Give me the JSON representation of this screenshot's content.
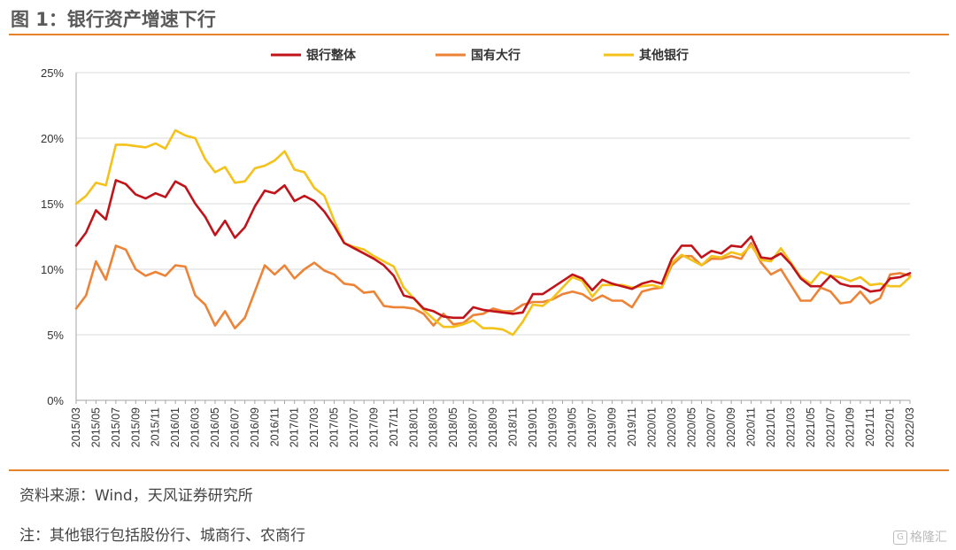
{
  "header": {
    "title": "图 1：银行资产增速下行"
  },
  "footer": {
    "source": "资料来源：Wind，天风证券研究所",
    "note": "注：其他银行包括股份行、城商行、农商行"
  },
  "watermark": {
    "text": "格隆汇",
    "icon": "glh-logo-icon"
  },
  "chart_data": {
    "type": "line",
    "ylim": [
      0,
      25
    ],
    "ytick_labels": [
      "0%",
      "5%",
      "10%",
      "15%",
      "20%",
      "25%"
    ],
    "ytick_values": [
      0,
      5,
      10,
      15,
      20,
      25
    ],
    "grid": "horizontal",
    "legend_position": "top",
    "x": [
      "2015/03",
      "2015/04",
      "2015/05",
      "2015/06",
      "2015/07",
      "2015/08",
      "2015/09",
      "2015/10",
      "2015/11",
      "2015/12",
      "2016/01",
      "2016/02",
      "2016/03",
      "2016/04",
      "2016/05",
      "2016/06",
      "2016/07",
      "2016/08",
      "2016/09",
      "2016/10",
      "2016/11",
      "2016/12",
      "2017/01",
      "2017/02",
      "2017/03",
      "2017/04",
      "2017/05",
      "2017/06",
      "2017/07",
      "2017/08",
      "2017/09",
      "2017/10",
      "2017/11",
      "2017/12",
      "2018/01",
      "2018/02",
      "2018/03",
      "2018/04",
      "2018/05",
      "2018/06",
      "2018/07",
      "2018/08",
      "2018/09",
      "2018/10",
      "2018/11",
      "2018/12",
      "2019/01",
      "2019/02",
      "2019/03",
      "2019/04",
      "2019/05",
      "2019/06",
      "2019/07",
      "2019/08",
      "2019/09",
      "2019/10",
      "2019/11",
      "2019/12",
      "2020/01",
      "2020/02",
      "2020/03",
      "2020/04",
      "2020/05",
      "2020/06",
      "2020/07",
      "2020/08",
      "2020/09",
      "2020/10",
      "2020/11",
      "2020/12",
      "2021/01",
      "2021/02",
      "2021/03",
      "2021/04",
      "2021/05",
      "2021/06",
      "2021/07",
      "2021/08",
      "2021/09",
      "2021/10",
      "2021/11",
      "2021/12",
      "2022/01",
      "2022/02",
      "2022/03"
    ],
    "xtick_labels": [
      "2015/03",
      "2015/05",
      "2015/07",
      "2015/09",
      "2015/11",
      "2016/01",
      "2016/03",
      "2016/05",
      "2016/07",
      "2016/09",
      "2016/11",
      "2017/01",
      "2017/03",
      "2017/05",
      "2017/07",
      "2017/09",
      "2017/11",
      "2018/01",
      "2018/03",
      "2018/05",
      "2018/07",
      "2018/09",
      "2018/11",
      "2019/01",
      "2019/03",
      "2019/05",
      "2019/07",
      "2019/09",
      "2019/11",
      "2020/01",
      "2020/03",
      "2020/05",
      "2020/07",
      "2020/09",
      "2020/11",
      "2021/01",
      "2021/03",
      "2021/05",
      "2021/07",
      "2021/09",
      "2021/11",
      "2022/01",
      "2022/03"
    ],
    "series": [
      {
        "name": "银行整体",
        "color": "#c0141a",
        "values": [
          11.8,
          12.8,
          14.5,
          13.8,
          16.8,
          16.5,
          15.7,
          15.4,
          15.8,
          15.5,
          16.7,
          16.3,
          15.0,
          14.0,
          12.6,
          13.7,
          12.4,
          13.2,
          14.8,
          16.0,
          15.8,
          16.4,
          15.2,
          15.6,
          15.2,
          14.4,
          13.3,
          12.0,
          11.6,
          11.2,
          10.8,
          10.3,
          9.5,
          8.0,
          7.8,
          7.0,
          6.8,
          6.4,
          6.3,
          6.3,
          7.1,
          6.9,
          6.8,
          6.7,
          6.6,
          6.7,
          8.1,
          8.1,
          8.6,
          9.1,
          9.6,
          9.3,
          8.4,
          9.2,
          8.9,
          8.7,
          8.5,
          8.9,
          9.1,
          8.9,
          10.8,
          11.8,
          11.8,
          10.9,
          11.4,
          11.2,
          11.8,
          11.7,
          12.5,
          10.9,
          10.8,
          11.2,
          10.4,
          9.3,
          8.7,
          8.7,
          9.5,
          8.9,
          8.7,
          8.7,
          8.3,
          8.4,
          9.3,
          9.4,
          9.7
        ]
      },
      {
        "name": "国有大行",
        "color": "#ed8336",
        "values": [
          7.0,
          8.0,
          10.6,
          9.2,
          11.8,
          11.5,
          10.0,
          9.5,
          9.8,
          9.5,
          10.3,
          10.2,
          8.0,
          7.3,
          5.7,
          6.8,
          5.5,
          6.3,
          8.3,
          10.3,
          9.6,
          10.3,
          9.3,
          10.0,
          10.5,
          9.9,
          9.6,
          8.9,
          8.8,
          8.2,
          8.3,
          7.2,
          7.1,
          7.1,
          7.0,
          6.6,
          5.7,
          6.6,
          5.8,
          5.9,
          6.5,
          6.6,
          7.0,
          6.8,
          6.8,
          7.3,
          7.5,
          7.5,
          7.7,
          8.1,
          8.3,
          8.1,
          7.6,
          8.0,
          7.6,
          7.6,
          7.1,
          8.3,
          8.5,
          8.6,
          10.3,
          11.0,
          11.0,
          10.3,
          10.8,
          10.8,
          11.0,
          10.8,
          12.0,
          10.5,
          9.6,
          10.0,
          8.8,
          7.6,
          7.6,
          8.6,
          8.3,
          7.4,
          7.5,
          8.3,
          7.4,
          7.8,
          9.6,
          9.7,
          9.5
        ]
      },
      {
        "name": "其他银行",
        "color": "#f4c21b",
        "values": [
          15.0,
          15.6,
          16.6,
          16.4,
          19.5,
          19.5,
          19.4,
          19.3,
          19.6,
          19.2,
          20.6,
          20.2,
          20.0,
          18.4,
          17.4,
          17.8,
          16.6,
          16.7,
          17.7,
          17.9,
          18.3,
          19.0,
          17.6,
          17.4,
          16.2,
          15.6,
          13.7,
          12.0,
          11.7,
          11.5,
          11.0,
          10.6,
          10.2,
          8.6,
          7.8,
          6.9,
          6.2,
          5.6,
          5.6,
          5.8,
          6.1,
          5.5,
          5.5,
          5.4,
          5.0,
          6.0,
          7.3,
          7.2,
          7.8,
          8.6,
          9.4,
          9.1,
          7.9,
          8.8,
          8.8,
          8.8,
          8.6,
          8.7,
          8.8,
          8.6,
          10.5,
          11.1,
          10.7,
          10.3,
          11.0,
          10.9,
          11.3,
          11.1,
          11.8,
          10.7,
          10.6,
          11.6,
          10.5,
          9.4,
          8.9,
          9.8,
          9.5,
          9.4,
          9.1,
          9.4,
          8.8,
          8.9,
          8.7,
          8.7,
          9.4
        ]
      }
    ]
  }
}
